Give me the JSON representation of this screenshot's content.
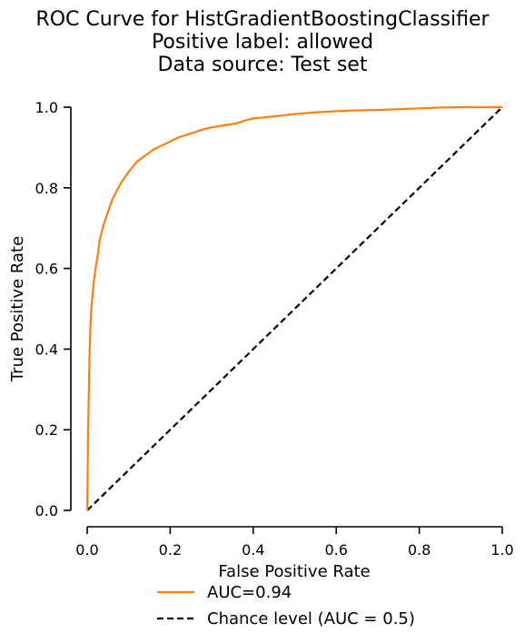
{
  "chart_data": {
    "type": "line",
    "title": [
      "ROC Curve for HistGradientBoostingClassifier",
      "Positive label: allowed",
      "Data source: Test set"
    ],
    "xlabel": "False Positive Rate",
    "ylabel": "True Positive Rate",
    "xlim": [
      0,
      1
    ],
    "ylim": [
      0,
      1
    ],
    "xticks": [
      "0.0",
      "0.2",
      "0.4",
      "0.6",
      "0.8",
      "1.0"
    ],
    "yticks": [
      "0.0",
      "0.2",
      "0.4",
      "0.6",
      "0.8",
      "1.0"
    ],
    "grid": false,
    "legend_position": "bottom-center",
    "series": [
      {
        "name": "AUC=0.94",
        "color": "#ff7f0e",
        "style": "solid",
        "x": [
          0.0,
          0.002,
          0.004,
          0.006,
          0.008,
          0.01,
          0.015,
          0.02,
          0.025,
          0.03,
          0.04,
          0.05,
          0.06,
          0.07,
          0.08,
          0.09,
          0.1,
          0.12,
          0.14,
          0.16,
          0.18,
          0.2,
          0.22,
          0.25,
          0.28,
          0.3,
          0.33,
          0.36,
          0.38,
          0.4,
          0.45,
          0.5,
          0.55,
          0.6,
          0.65,
          0.7,
          0.75,
          0.8,
          0.85,
          0.9,
          0.95,
          1.0
        ],
        "y": [
          0.0,
          0.18,
          0.3,
          0.4,
          0.46,
          0.5,
          0.56,
          0.6,
          0.63,
          0.67,
          0.71,
          0.74,
          0.77,
          0.79,
          0.81,
          0.825,
          0.84,
          0.865,
          0.88,
          0.895,
          0.905,
          0.915,
          0.925,
          0.935,
          0.945,
          0.95,
          0.955,
          0.96,
          0.967,
          0.972,
          0.977,
          0.983,
          0.987,
          0.99,
          0.992,
          0.993,
          0.995,
          0.997,
          0.999,
          1.0,
          1.0,
          1.0
        ]
      },
      {
        "name": "Chance level (AUC = 0.5)",
        "color": "#000000",
        "style": "dashed",
        "x": [
          0,
          1
        ],
        "y": [
          0,
          1
        ]
      }
    ]
  }
}
